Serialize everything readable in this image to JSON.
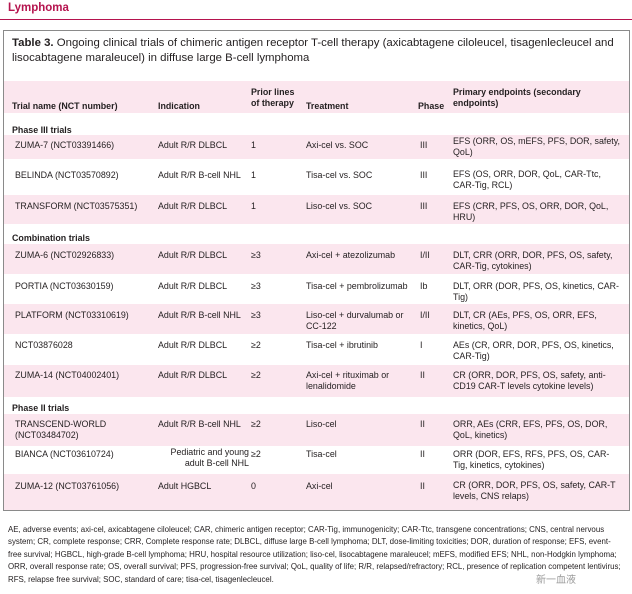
{
  "journal_section": "Lymphoma",
  "table": {
    "label": "Table 3.",
    "caption": "Ongoing clinical trials of chimeric antigen receptor T-cell therapy (axicabtagene ciloleucel, tisagenlecleucel and lisocabtagene maraleucel) in diffuse large B-cell lymphoma",
    "headers": {
      "trial": "Trial name (NCT number)",
      "indication": "Indication",
      "prior": "Prior lines of therapy",
      "treatment": "Treatment",
      "phase": "Phase",
      "endpoints": "Primary endpoints (secondary endpoints)"
    },
    "sections": [
      {
        "title": "Phase III trials",
        "rows": [
          {
            "trial": "ZUMA-7 (NCT03391466)",
            "indication": "Adult R/R DLBCL",
            "prior": "1",
            "treatment": "Axi-cel vs. SOC",
            "phase": "III",
            "endpoints": "EFS (ORR, OS, mEFS, PFS, DOR, safety, QoL)"
          },
          {
            "trial": "BELINDA (NCT03570892)",
            "indication": "Adult R/R B-cell NHL",
            "prior": "1",
            "treatment": "Tisa-cel vs. SOC",
            "phase": "III",
            "endpoints": "EFS (OS, ORR, DOR, QoL, CAR-Ttc, CAR-Tig, RCL)"
          },
          {
            "trial": "TRANSFORM (NCT03575351)",
            "indication": "Adult R/R DLBCL",
            "prior": "1",
            "treatment": "Liso-cel vs. SOC",
            "phase": "III",
            "endpoints": "EFS (CRR, PFS, OS, ORR, DOR, QoL, HRU)"
          }
        ]
      },
      {
        "title": "Combination trials",
        "rows": [
          {
            "trial": "ZUMA-6 (NCT02926833)",
            "indication": "Adult R/R DLBCL",
            "prior": "≥3",
            "treatment": "Axi-cel + atezolizumab",
            "phase": "I/II",
            "endpoints": "DLT, CRR (ORR, DOR, PFS, OS, safety, CAR-Tig, cytokines)"
          },
          {
            "trial": "PORTIA (NCT03630159)",
            "indication": "Adult R/R DLBCL",
            "prior": "≥3",
            "treatment": "Tisa-cel + pembrolizumab",
            "phase": "Ib",
            "endpoints": "DLT, ORR (DOR, PFS, OS, kinetics, CAR-Tig)"
          },
          {
            "trial": "PLATFORM (NCT03310619)",
            "indication": "Adult R/R B-cell NHL",
            "prior": "≥3",
            "treatment": "Liso-cel + durvalumab or CC-122",
            "phase": "I/II",
            "endpoints": "DLT, CR (AEs, PFS, OS, ORR, EFS, kinetics, QoL)"
          },
          {
            "trial": "NCT03876028",
            "indication": "Adult R/R DLBCL",
            "prior": "≥2",
            "treatment": "Tisa-cel + ibrutinib",
            "phase": "I",
            "endpoints": "AEs (CR, ORR, DOR, PFS, OS, kinetics, CAR-Tig)"
          },
          {
            "trial": "ZUMA-14 (NCT04002401)",
            "indication": "Adult R/R DLBCL",
            "prior": "≥2",
            "treatment": "Axi-cel + rituximab or lenalidomide",
            "phase": "II",
            "endpoints": "CR (ORR, DOR, PFS, OS, safety, anti-CD19 CAR-T levels cytokine levels)"
          }
        ]
      },
      {
        "title": "Phase II trials",
        "rows": [
          {
            "trial": "TRANSCEND-WORLD (NCT03484702)",
            "indication": "Adult R/R B-cell NHL",
            "prior": "≥2",
            "treatment": "Liso-cel",
            "phase": "II",
            "endpoints": "ORR, AEs (CRR, EFS, PFS, OS, DOR, QoL, kinetics)"
          },
          {
            "trial": "BIANCA (NCT03610724)",
            "indication": "Pediatric and young adult B-cell NHL",
            "prior": "≥2",
            "treatment": "Tisa-cel",
            "phase": "II",
            "endpoints": "ORR (DOR, EFS, RFS, PFS, OS, CAR-Tig, kinetics, cytokines)"
          },
          {
            "trial": "ZUMA-12 (NCT03761056)",
            "indication": "Adult HGBCL",
            "prior": "0",
            "treatment": "Axi-cel",
            "phase": "II",
            "endpoints": "CR (ORR, DOR, PFS, OS, safety, CAR-T levels, CNS relaps)"
          }
        ]
      }
    ],
    "footnote": "AE, adverse events; axi-cel, axicabtagene ciloleucel; CAR, chimeric antigen receptor; CAR-Tig, immunogenicity; CAR-Ttc, transgene concentrations; CNS, central nervous system; CR, complete response; CRR, Complete response rate; DLBCL, diffuse large B-cell lymphoma; DLT, dose-limiting toxicities; DOR, duration of response; EFS, event-free survival; HGBCL, high-grade B-cell lymphoma; HRU, hospital resource utilization; liso-cel, lisocabtagene maraleucel; mEFS, modified EFS; NHL, non-Hodgkin lymphoma; ORR, overall response rate; OS, overall survival; PFS, progression-free survival; QoL, quality of life; R/R, relapsed/refractory; RCL, presence of replication competent lentivirus; RFS, relapse free survival; SOC, standard of care; tisa-cel, tisagenlecleucel."
  },
  "watermark": "新一血液"
}
